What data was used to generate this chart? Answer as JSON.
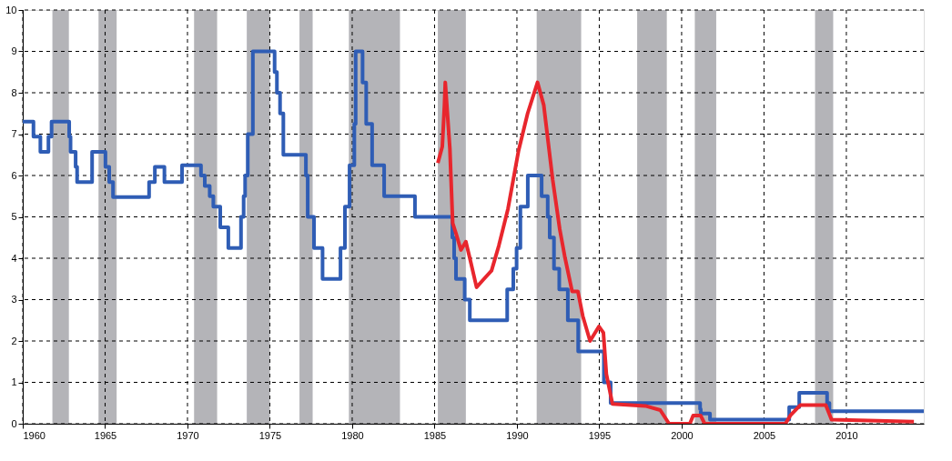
{
  "chart_data": {
    "type": "line",
    "xlim": [
      1960,
      2014.7
    ],
    "xticks": [
      1960,
      1965,
      1970,
      1975,
      1980,
      1985,
      1990,
      1995,
      2000,
      2005,
      2010
    ],
    "ylim": [
      0,
      10
    ],
    "yticks": [
      0,
      1,
      2,
      3,
      4,
      5,
      6,
      7,
      8,
      9,
      10
    ],
    "grid": true,
    "line_style": "solid",
    "marker": "none",
    "bands": [
      {
        "axis": "x",
        "from": 1961.8,
        "to": 1962.8,
        "color": "#b4b4b8"
      },
      {
        "axis": "x",
        "from": 1964.6,
        "to": 1965.7,
        "color": "#b4b4b8"
      },
      {
        "axis": "x",
        "from": 1970.4,
        "to": 1971.8,
        "color": "#b4b4b8"
      },
      {
        "axis": "x",
        "from": 1973.6,
        "to": 1975.0,
        "color": "#b4b4b8"
      },
      {
        "axis": "x",
        "from": 1976.8,
        "to": 1977.6,
        "color": "#b4b4b8"
      },
      {
        "axis": "x",
        "from": 1979.8,
        "to": 1982.9,
        "color": "#b4b4b8"
      },
      {
        "axis": "x",
        "from": 1985.2,
        "to": 1986.9,
        "color": "#b4b4b8"
      },
      {
        "axis": "x",
        "from": 1991.2,
        "to": 1993.9,
        "color": "#b4b4b8"
      },
      {
        "axis": "x",
        "from": 1997.3,
        "to": 1999.1,
        "color": "#b4b4b8"
      },
      {
        "axis": "x",
        "from": 2000.8,
        "to": 2002.1,
        "color": "#b4b4b8"
      },
      {
        "axis": "x",
        "from": 2008.1,
        "to": 2009.2,
        "color": "#b4b4b8"
      }
    ],
    "series": [
      {
        "type": "step",
        "color": "#2f5db5",
        "x": [
          1960.0,
          1960.65,
          1961.07,
          1961.56,
          1961.75,
          1962.82,
          1962.9,
          1963.21,
          1963.3,
          1964.21,
          1965.02,
          1965.25,
          1965.48,
          1967.67,
          1968.02,
          1968.6,
          1969.67,
          1970.82,
          1971.05,
          1971.35,
          1971.57,
          1971.99,
          1972.48,
          1973.25,
          1973.41,
          1973.5,
          1973.66,
          1973.97,
          1975.29,
          1975.43,
          1975.62,
          1975.82,
          1977.19,
          1977.3,
          1977.68,
          1978.2,
          1979.29,
          1979.56,
          1979.84,
          1980.13,
          1980.21,
          1980.63,
          1980.85,
          1981.21,
          1981.94,
          1983.81,
          1986.08,
          1986.19,
          1986.3,
          1986.83,
          1987.14,
          1989.41,
          1989.78,
          1989.98,
          1990.21,
          1990.66,
          1991.5,
          1991.87,
          1991.99,
          1992.25,
          1992.57,
          1993.09,
          1993.72,
          1995.28,
          1995.69,
          2001.12,
          2001.16,
          2001.72,
          2006.53,
          2007.14,
          2008.83,
          2008.97,
          2014.7
        ],
        "values": [
          7.3,
          6.94,
          6.57,
          6.94,
          7.3,
          6.94,
          6.57,
          6.21,
          5.84,
          6.57,
          6.21,
          5.84,
          5.48,
          5.84,
          6.21,
          5.84,
          6.25,
          6.0,
          5.75,
          5.5,
          5.25,
          4.75,
          4.25,
          5.0,
          5.5,
          6.0,
          7.0,
          9.0,
          8.5,
          8.0,
          7.5,
          6.5,
          6.0,
          5.0,
          4.25,
          3.5,
          4.25,
          5.25,
          6.25,
          7.25,
          9.0,
          8.25,
          7.25,
          6.25,
          5.5,
          5.0,
          4.5,
          4.0,
          3.5,
          3.0,
          2.5,
          3.25,
          3.75,
          4.25,
          5.25,
          6.0,
          5.5,
          5.0,
          4.5,
          3.75,
          3.25,
          2.5,
          1.75,
          1.0,
          0.5,
          0.35,
          0.25,
          0.1,
          0.4,
          0.75,
          0.5,
          0.3,
          0.3
        ]
      },
      {
        "type": "line",
        "color": "#e8262d",
        "x": [
          1985.2,
          1985.47,
          1985.6,
          1985.65,
          1985.93,
          1986.1,
          1986.3,
          1986.6,
          1986.9,
          1987.2,
          1987.55,
          1988.0,
          1988.46,
          1988.9,
          1989.46,
          1990.1,
          1990.65,
          1991.25,
          1991.63,
          1992.17,
          1992.6,
          1992.9,
          1993.35,
          1993.7,
          1994.0,
          1994.44,
          1994.98,
          1995.25,
          1995.43,
          1995.8,
          1997.8,
          1998.7,
          1999.24,
          2000.5,
          2000.7,
          2001.15,
          2001.4,
          2006.3,
          2006.6,
          2007.2,
          2008.75,
          2009.1,
          2014.1
        ],
        "values": [
          6.3,
          6.7,
          7.7,
          8.25,
          6.65,
          4.85,
          4.6,
          4.2,
          4.4,
          3.9,
          3.3,
          3.5,
          3.7,
          4.3,
          5.2,
          6.6,
          7.5,
          8.25,
          7.7,
          5.9,
          4.7,
          4.05,
          3.2,
          3.2,
          2.6,
          2.0,
          2.35,
          2.2,
          1.2,
          0.48,
          0.43,
          0.33,
          0.0,
          0.0,
          0.2,
          0.2,
          0.0,
          0.0,
          0.2,
          0.45,
          0.45,
          0.1,
          0.05
        ]
      }
    ]
  }
}
